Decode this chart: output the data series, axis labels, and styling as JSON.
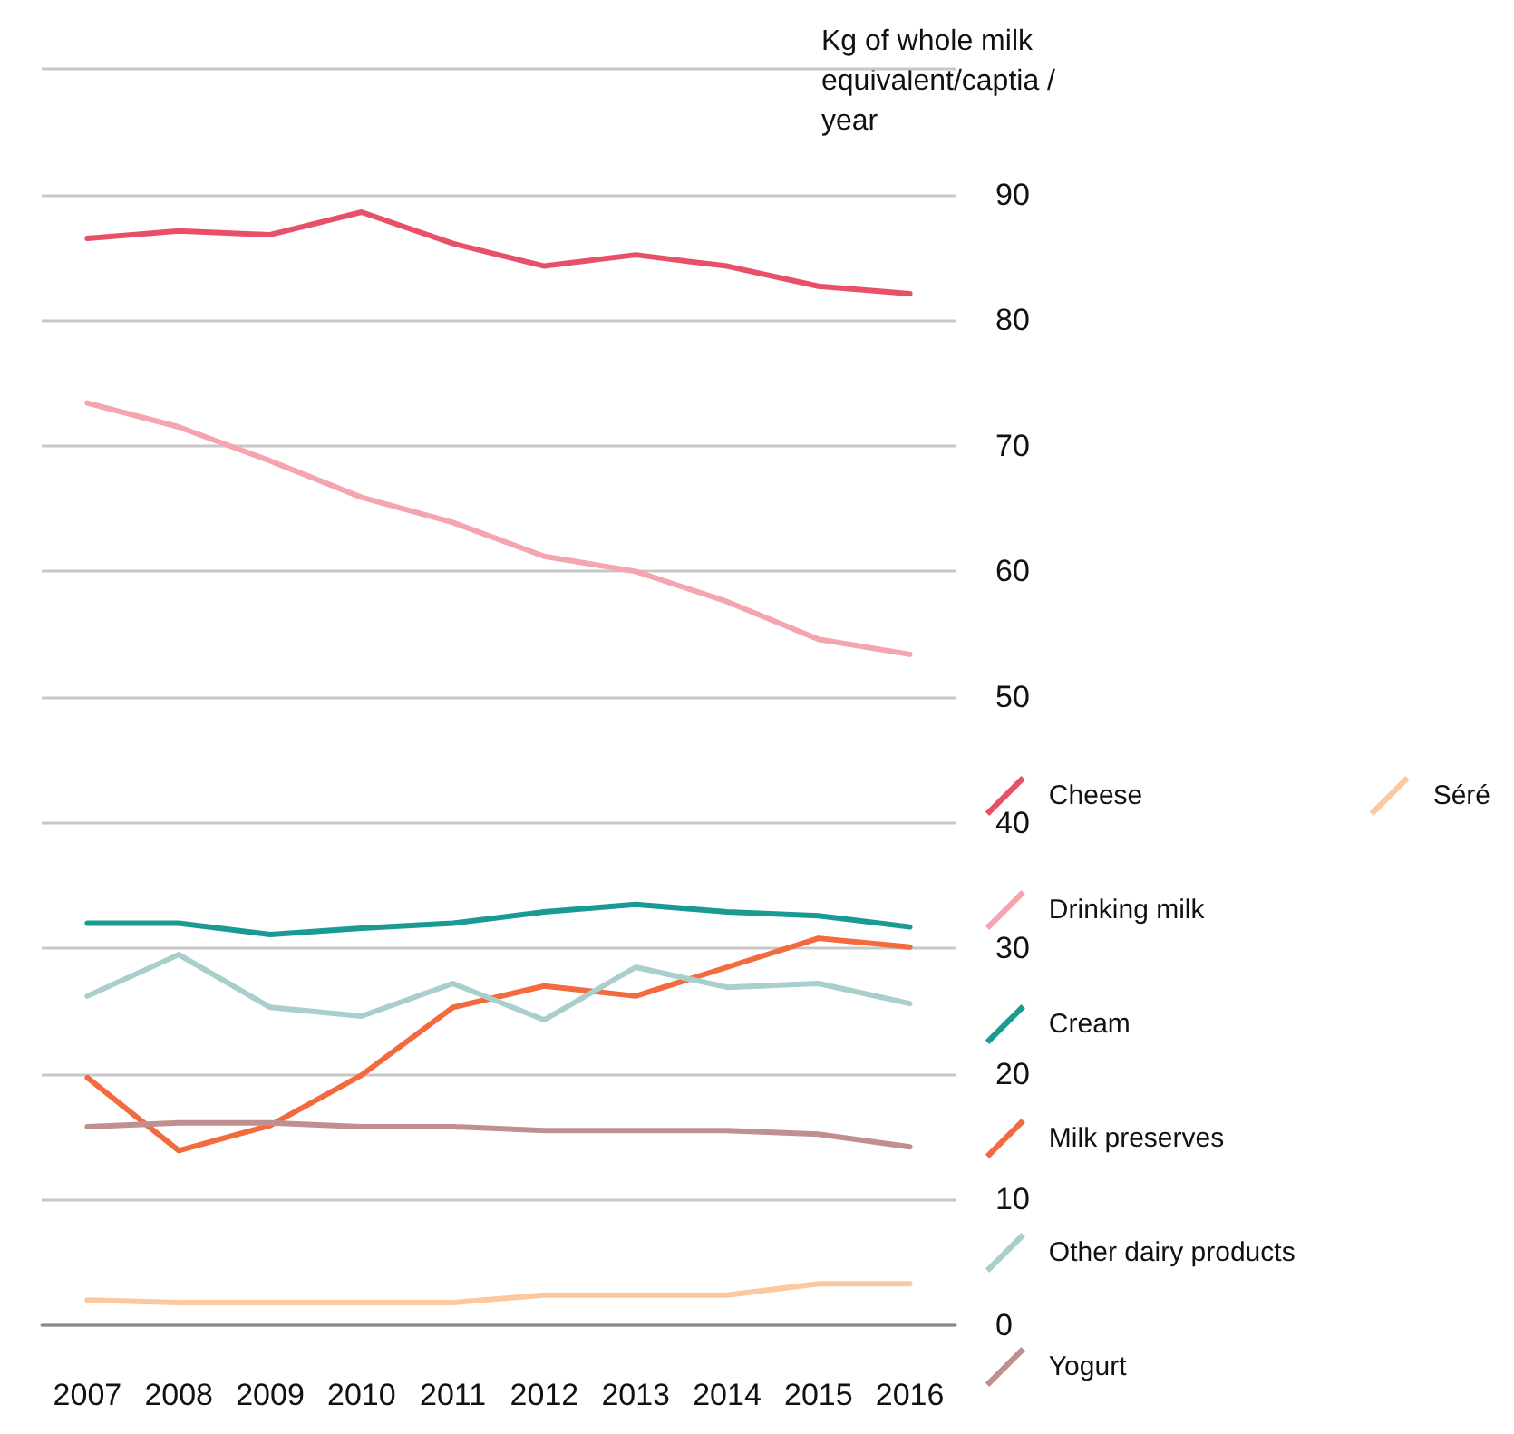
{
  "chart_data": {
    "type": "line",
    "ylabel": "Kg of whole milk equivalent/captia /year",
    "categories": [
      "2007",
      "2008",
      "2009",
      "2010",
      "2011",
      "2012",
      "2013",
      "2014",
      "2015",
      "2016"
    ],
    "series": [
      {
        "name": "Cheese",
        "color": "#e8506a",
        "values": [
          86.5,
          87.1,
          86.8,
          88.6,
          86.1,
          84.3,
          85.2,
          84.3,
          82.7,
          82.1
        ]
      },
      {
        "name": "Drinking milk",
        "color": "#f4a5ad",
        "values": [
          73.4,
          71.5,
          68.8,
          65.9,
          63.9,
          61.2,
          60.0,
          57.6,
          54.6,
          53.4
        ]
      },
      {
        "name": "Cream",
        "color": "#1a9a94",
        "values": [
          32.0,
          32.0,
          31.1,
          31.6,
          32.0,
          32.9,
          33.5,
          32.9,
          32.6,
          31.7
        ]
      },
      {
        "name": "Milk preserves",
        "color": "#f26a3d",
        "values": [
          19.7,
          13.9,
          15.9,
          19.9,
          25.3,
          27.0,
          26.2,
          28.5,
          30.8,
          30.1
        ]
      },
      {
        "name": "Other dairy products",
        "color": "#a8cfcc",
        "values": [
          26.2,
          29.5,
          25.3,
          24.6,
          27.2,
          24.3,
          28.5,
          26.9,
          27.2,
          25.6
        ]
      },
      {
        "name": "Yogurt",
        "color": "#c09090",
        "values": [
          15.8,
          16.1,
          16.1,
          15.8,
          15.8,
          15.5,
          15.5,
          15.5,
          15.2,
          14.2
        ]
      },
      {
        "name": "Séré",
        "color": "#fbc8a0",
        "values": [
          2.0,
          1.8,
          1.8,
          1.8,
          1.8,
          2.4,
          2.4,
          2.4,
          3.3,
          3.3
        ]
      }
    ],
    "ylim": [
      0,
      100
    ],
    "yticks": [
      0,
      10,
      20,
      30,
      40,
      50,
      60,
      70,
      80,
      90,
      {
        "value": 100,
        "label": null
      }
    ],
    "grid": "y",
    "legend": "right",
    "marker": "none",
    "line_style": "solid"
  }
}
